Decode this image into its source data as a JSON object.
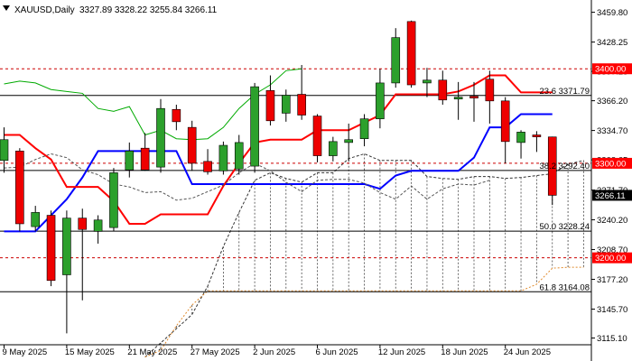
{
  "chart_data": {
    "type": "candlestick",
    "title": "XAUUSD,Daily",
    "ohlc_header": "3327.89 3328.22 3255.84 3266.11",
    "ylim": [
      3108,
      3468
    ],
    "y_ticks": [
      3459.8,
      3428.25,
      3397.25,
      3366.2,
      3334.7,
      3303.65,
      3271.7,
      3240.2,
      3208.7,
      3177.2,
      3145.7,
      3115.1
    ],
    "x_labels": [
      {
        "index": 0,
        "label": "9 May 2025"
      },
      {
        "index": 4,
        "label": "15 May 2025"
      },
      {
        "index": 8,
        "label": "21 May 2025"
      },
      {
        "index": 12,
        "label": "27 May 2025"
      },
      {
        "index": 16,
        "label": "2 Jun 2025"
      },
      {
        "index": 20,
        "label": "6 Jun 2025"
      },
      {
        "index": 24,
        "label": "12 Jun 2025"
      },
      {
        "index": 28,
        "label": "18 Jun 2025"
      },
      {
        "index": 32,
        "label": "24 Jun 2025"
      }
    ],
    "candles": [
      {
        "o": 3303,
        "h": 3338,
        "l": 3290,
        "c": 3325
      },
      {
        "o": 3313,
        "h": 3316,
        "l": 3228,
        "c": 3236
      },
      {
        "o": 3233,
        "h": 3255,
        "l": 3228,
        "c": 3248
      },
      {
        "o": 3245,
        "h": 3250,
        "l": 3170,
        "c": 3176
      },
      {
        "o": 3182,
        "h": 3250,
        "l": 3120,
        "c": 3242
      },
      {
        "o": 3242,
        "h": 3252,
        "l": 3155,
        "c": 3230
      },
      {
        "o": 3228,
        "h": 3245,
        "l": 3215,
        "c": 3240
      },
      {
        "o": 3232,
        "h": 3295,
        "l": 3228,
        "c": 3290
      },
      {
        "o": 3293,
        "h": 3322,
        "l": 3285,
        "c": 3313
      },
      {
        "o": 3316,
        "h": 3332,
        "l": 3292,
        "c": 3293
      },
      {
        "o": 3296,
        "h": 3368,
        "l": 3290,
        "c": 3358
      },
      {
        "o": 3357,
        "h": 3362,
        "l": 3335,
        "c": 3344
      },
      {
        "o": 3338,
        "h": 3345,
        "l": 3292,
        "c": 3300
      },
      {
        "o": 3302,
        "h": 3315,
        "l": 3288,
        "c": 3291
      },
      {
        "o": 3292,
        "h": 3323,
        "l": 3288,
        "c": 3319
      },
      {
        "o": 3294,
        "h": 3330,
        "l": 3288,
        "c": 3322
      },
      {
        "o": 3297,
        "h": 3385,
        "l": 3290,
        "c": 3381
      },
      {
        "o": 3377,
        "h": 3393,
        "l": 3340,
        "c": 3345
      },
      {
        "o": 3353,
        "h": 3378,
        "l": 3344,
        "c": 3372
      },
      {
        "o": 3373,
        "h": 3404,
        "l": 3346,
        "c": 3351
      },
      {
        "o": 3350,
        "h": 3352,
        "l": 3301,
        "c": 3308
      },
      {
        "o": 3308,
        "h": 3328,
        "l": 3302,
        "c": 3323
      },
      {
        "o": 3322,
        "h": 3342,
        "l": 3302,
        "c": 3325
      },
      {
        "o": 3326,
        "h": 3352,
        "l": 3318,
        "c": 3347
      },
      {
        "o": 3347,
        "h": 3400,
        "l": 3337,
        "c": 3385
      },
      {
        "o": 3385,
        "h": 3443,
        "l": 3380,
        "c": 3433
      },
      {
        "o": 3450,
        "h": 3451,
        "l": 3380,
        "c": 3383
      },
      {
        "o": 3385,
        "h": 3401,
        "l": 3370,
        "c": 3388
      },
      {
        "o": 3388,
        "h": 3398,
        "l": 3362,
        "c": 3367
      },
      {
        "o": 3368,
        "h": 3386,
        "l": 3346,
        "c": 3370
      },
      {
        "o": 3371,
        "h": 3386,
        "l": 3344,
        "c": 3369
      },
      {
        "o": 3389,
        "h": 3398,
        "l": 3342,
        "c": 3366
      },
      {
        "o": 3366,
        "h": 3370,
        "l": 3300,
        "c": 3323
      },
      {
        "o": 3322,
        "h": 3335,
        "l": 3305,
        "c": 3333
      },
      {
        "o": 3330,
        "h": 3334,
        "l": 3312,
        "c": 3328
      },
      {
        "o": 3327.89,
        "h": 3328.22,
        "l": 3255.84,
        "c": 3266.11
      }
    ],
    "series": [
      {
        "name": "",
        "color": "#0000ff",
        "values": [
          3228,
          3228,
          3228,
          3245,
          3262,
          3285,
          3313,
          3313,
          3313,
          3313,
          3313,
          3313,
          3278,
          3278,
          3278,
          3278,
          3278,
          3278,
          3278,
          3278,
          3278,
          3278,
          3278,
          3278,
          3273,
          3287,
          3292,
          3292,
          3292,
          3292,
          3306,
          3338,
          3338,
          3352,
          3352,
          3352
        ]
      },
      {
        "name": "",
        "color": "#ff0000",
        "values": [
          3330,
          3330,
          3316,
          3304,
          3275,
          3275,
          3275,
          3260,
          3236,
          3236,
          3246,
          3246,
          3246,
          3246,
          3276,
          3300,
          3322,
          3325,
          3325,
          3325,
          3335,
          3335,
          3335,
          3343,
          3351,
          3373,
          3373,
          3373,
          3373,
          3376,
          3383,
          3393,
          3393,
          3375,
          3375,
          3375
        ]
      },
      {
        "name": "",
        "color": "#00aa00",
        "values": [
          3384,
          3387,
          3385,
          3378,
          3376,
          3374,
          3358,
          3355,
          3360,
          3330,
          3335,
          3326,
          3325,
          3326,
          3338,
          3358,
          3373,
          3383,
          3398,
          3400
        ]
      },
      {
        "name": "",
        "color": "#555555",
        "dashed": true,
        "values": [
          3295,
          3296,
          3304,
          3310,
          3306,
          3293,
          3288,
          3278,
          3275,
          3269,
          3270,
          3261,
          3263,
          3270,
          3277,
          3290,
          3300,
          3292,
          3280,
          3270,
          3282,
          3283,
          3283,
          3279,
          3269,
          3262,
          3276,
          3262,
          3273,
          3278,
          3277,
          3282
        ]
      }
    ],
    "cloud_span_a": [
      3095,
      3110,
      3125,
      3140,
      3170,
      3212,
      3248,
      3282,
      3290,
      3284,
      3280,
      3290,
      3290,
      3305,
      3310,
      3303,
      3303,
      3303,
      3286,
      3284,
      3283,
      3286,
      3286,
      3284,
      3285,
      3287,
      3289,
      3299,
      3303,
      3281,
      3290,
      3290,
      3281,
      3267
    ],
    "cloud_span_b": [
      3095,
      3102,
      3128,
      3150,
      3165,
      3165,
      3165,
      3165,
      3165,
      3165,
      3165,
      3165,
      3165,
      3165,
      3165,
      3165,
      3165,
      3165,
      3165,
      3165,
      3165,
      3165,
      3165,
      3165,
      3165,
      3172,
      3189,
      3190,
      3190,
      3190,
      3190,
      3197,
      3203,
      3212
    ],
    "horizontal_lines": [
      {
        "price": 3400.0,
        "label": "3400.00",
        "style": "dashed-red",
        "marker": true
      },
      {
        "price": 3371.79,
        "label": "23.6 3371.79",
        "style": "solid-black"
      },
      {
        "price": 3300.0,
        "label": "3300.00",
        "style": "dashed-red",
        "marker": true
      },
      {
        "price": 3292.4,
        "label": "38.2 3292.40",
        "style": "solid-black"
      },
      {
        "price": 3228.24,
        "label": "50.0 3228.24",
        "style": "solid-black"
      },
      {
        "price": 3200.0,
        "label": "3200.00",
        "style": "dashed-red",
        "marker": true
      },
      {
        "price": 3164.08,
        "label": "61.8 3164.08",
        "style": "solid-black"
      }
    ],
    "current_price": {
      "value": 3266.11,
      "label": "3266.11"
    },
    "colors": {
      "bull": "#2ca02c",
      "bear": "#ee0000",
      "marker_red": "#ff0000",
      "current_price_bg": "#000000"
    }
  }
}
